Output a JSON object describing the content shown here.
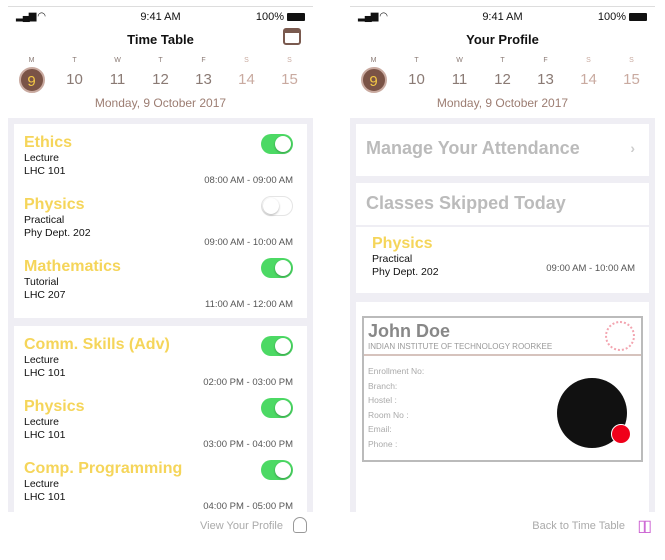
{
  "status": {
    "time": "9:41 AM",
    "battery": "100%"
  },
  "week": {
    "letters": [
      "M",
      "T",
      "W",
      "T",
      "F",
      "S",
      "S"
    ],
    "days": [
      "9",
      "10",
      "11",
      "12",
      "13",
      "14",
      "15"
    ],
    "selected": "9",
    "date": "Monday, 9 October 2017"
  },
  "timetable": {
    "title": "Time Table",
    "cards": [
      [
        {
          "subject": "Ethics",
          "type": "Lecture",
          "room": "LHC 101",
          "time": "08:00 AM - 09:00 AM",
          "on": true
        },
        {
          "subject": "Physics",
          "type": "Practical",
          "room": "Phy Dept. 202",
          "time": "09:00 AM - 10:00 AM",
          "on": false
        },
        {
          "subject": "Mathematics",
          "type": "Tutorial",
          "room": "LHC 207",
          "time": "11:00 AM - 12:00 AM",
          "on": true
        }
      ],
      [
        {
          "subject": "Comm. Skills (Adv)",
          "type": "Lecture",
          "room": "LHC 101",
          "time": "02:00 PM - 03:00 PM",
          "on": true
        },
        {
          "subject": "Physics",
          "type": "Lecture",
          "room": "LHC 101",
          "time": "03:00 PM - 04:00 PM",
          "on": true
        },
        {
          "subject": "Comp. Programming",
          "type": "Lecture",
          "room": "LHC 101",
          "time": "04:00 PM - 05:00 PM",
          "on": true
        }
      ]
    ],
    "bottom": "View Your Profile"
  },
  "profile": {
    "title": "Your Profile",
    "attendance": "Manage Your Attendance",
    "skipped_title": "Classes Skipped Today",
    "skipped": {
      "subject": "Physics",
      "type": "Practical",
      "room": "Phy Dept. 202",
      "time": "09:00 AM - 10:00 AM"
    },
    "id": {
      "name": "John Doe",
      "institute": "INDIAN INSTITUTE OF TECHNOLOGY ROORKEE",
      "fields": [
        "Enrollment No:",
        "Branch:",
        "Hostel :",
        "Room No :",
        "Email:",
        "Phone :"
      ]
    },
    "bottom": "Back to Time Table"
  },
  "colors": {
    "accent": "#f5d55a",
    "brown": "#7a5346",
    "toggle": "#4cd964"
  }
}
